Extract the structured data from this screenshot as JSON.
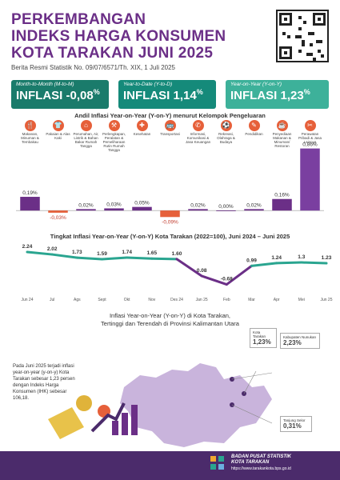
{
  "header": {
    "title_line1": "PERKEMBANGAN",
    "title_line2": "INDEKS HARGA KONSUMEN",
    "title_line3": "KOTA TARAKAN JUNI 2025",
    "subtitle": "Berita Resmi Statistik No. 09/07/6571/Th. XIX, 1 Juli 2025"
  },
  "cards": [
    {
      "label": "Month-to-Month (M-to-M)",
      "word": "INFLASI",
      "value": "-0,08",
      "unit": "%",
      "color": "#1a7b6b"
    },
    {
      "label": "Year-to-Date (Y-to-D)",
      "word": "INFLASI",
      "value": "1,14",
      "unit": "%",
      "color": "#158a7a"
    },
    {
      "label": "Year-on-Year (Y-on-Y)",
      "word": "INFLASI",
      "value": "1,23",
      "unit": "%",
      "color": "#3db19a"
    }
  ],
  "section1_title": "Andil Inflasi Year-on-Year (Y-on-Y) menurut Kelompok Pengeluaran",
  "section2_title": "Tingkat Inflasi Year-on-Year (Y-on-Y) Kota Tarakan (2022=100), Juni 2024 – Juni 2025",
  "section3_title_line1": "Inflasi Year-on-Year (Y-on-Y) di Kota Tarakan,",
  "section3_title_line2": "Tertinggi dan Terendah di Provinsi Kalimantan Utara",
  "note_text": "Pada Juni 2025 terjadi inflasi year-on-year (y-on-y) Kota Tarakan sebesar 1,23 persen dengan Indeks Harga Konsumen (IHK) sebesar 106,18.",
  "callouts": [
    {
      "label": "Kota Tarakan",
      "value": "1,23%"
    },
    {
      "label": "Kabupaten Nunukan",
      "value": "2,23%"
    },
    {
      "label": "Tanjung Selor",
      "value": "0,31%"
    }
  ],
  "footer": {
    "org_line1": "BADAN PUSAT STATISTIK",
    "org_line2": "KOTA TARAKAN",
    "url": "https://www.tarakankota.bps.go.id"
  },
  "categories": [
    {
      "icon": "food-icon",
      "label": "Makanan, Minuman & Tembakau"
    },
    {
      "icon": "clothes-icon",
      "label": "Pakaian & Alas Kaki"
    },
    {
      "icon": "house-icon",
      "label": "Perumahan, Air, Listrik & Bahan Bakar Rumah Tangga"
    },
    {
      "icon": "furniture-icon",
      "label": "Perlengkapan, Peralatan & Pemeliharaan Rutin Rumah Tangga"
    },
    {
      "icon": "health-icon",
      "label": "Kesehatan"
    },
    {
      "icon": "transport-icon",
      "label": "Transportasi"
    },
    {
      "icon": "communication-icon",
      "label": "Informasi, Komunikasi & Jasa Keuangan"
    },
    {
      "icon": "sport-icon",
      "label": "Rekreasi, Olahraga & Budaya"
    },
    {
      "icon": "education-icon",
      "label": "Pendidikan"
    },
    {
      "icon": "restaurant-icon",
      "label": "Penyediaan Makanan & Minuman/ Restoran"
    },
    {
      "icon": "personal-care-icon",
      "label": "Perawatan Pribadi & Jasa Lainnya"
    }
  ],
  "chart_data": [
    {
      "type": "bar",
      "title": "Andil Inflasi Year-on-Year (Y-on-Y) menurut Kelompok Pengeluaran",
      "categories": [
        "Makanan, Minuman & Tembakau",
        "Pakaian & Alas Kaki",
        "Perumahan, Air, Listrik & Bahan Bakar Rumah Tangga",
        "Perlengkapan, Peralatan & Pemeliharaan Rutin Rumah Tangga",
        "Kesehatan",
        "Transportasi",
        "Informasi, Komunikasi & Jasa Keuangan",
        "Rekreasi, Olahraga & Budaya",
        "Pendidikan",
        "Penyediaan Makanan & Minuman/ Restoran",
        "Perawatan Pribadi & Jasa Lainnya"
      ],
      "values": [
        0.19,
        -0.03,
        0.02,
        0.03,
        0.05,
        -0.09,
        0.02,
        0.0,
        0.02,
        0.16,
        0.86
      ],
      "value_labels": [
        "0,19%",
        "-0,03%",
        "0,02%",
        "0,03%",
        "0,05%",
        "-0,09%",
        "0,02%",
        "0,00%",
        "0,02%",
        "0,16%",
        "0,86%"
      ],
      "colors": {
        "positive": "#6b2f87",
        "negative": "#e6603a",
        "highlight": "#7a3fa0"
      },
      "ylim": [
        -0.12,
        0.9
      ]
    },
    {
      "type": "line",
      "title": "Tingkat Inflasi Year-on-Year (Y-on-Y) Kota Tarakan (2022=100), Juni 2024 – Juni 2025",
      "x": [
        "Jun 24",
        "Jul",
        "Ags",
        "Sept",
        "Okt",
        "Nov",
        "Des 24",
        "Jan 25",
        "Feb",
        "Mar",
        "Apr",
        "Mei",
        "Jun 25"
      ],
      "values": [
        2.24,
        2.02,
        1.73,
        1.59,
        1.74,
        1.65,
        1.6,
        0.08,
        -0.68,
        0.99,
        1.24,
        1.3,
        1.23
      ],
      "value_labels": [
        "2.24",
        "2.02",
        "1.73",
        "1.59",
        "1.74",
        "1.65",
        "1.60",
        "0.08",
        "-0.68",
        "0.99",
        "1.24",
        "1.3",
        "1.23"
      ],
      "colors": {
        "line_high": "#2aa590",
        "line_low": "#6b2f87"
      },
      "ylim": [
        -1.0,
        2.6
      ]
    }
  ],
  "map": {
    "colors": {
      "land": "#c9b4dc",
      "pins": "#4b2b6b"
    }
  }
}
